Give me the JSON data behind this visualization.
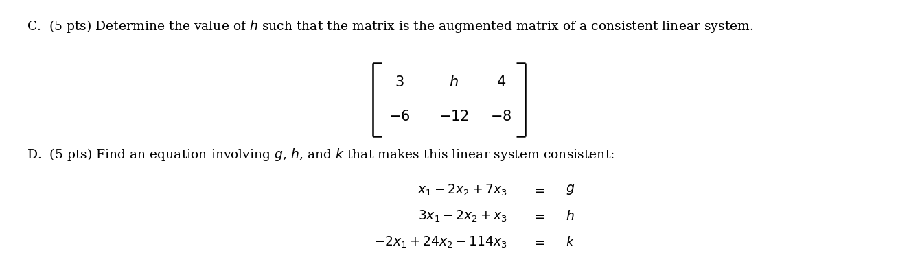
{
  "background_color": "#ffffff",
  "fig_width": 13.08,
  "fig_height": 3.82,
  "dpi": 100,
  "text_color": "#000000",
  "fontsize_main": 13.5,
  "fontsize_matrix": 15,
  "fontsize_eq": 13.5,
  "fontsize_bracket": 32
}
